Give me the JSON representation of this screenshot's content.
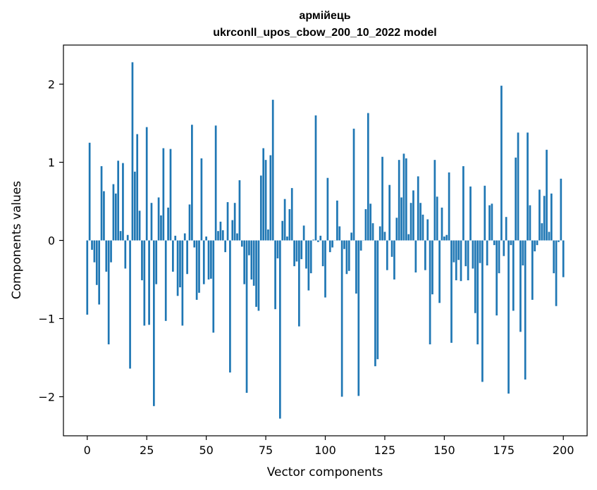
{
  "chart_data": {
    "type": "bar",
    "title": "армійець",
    "subtitle": "ukrconll_upos_cbow_200_10_2022 model",
    "xlabel": "Vector components",
    "ylabel": "Components values",
    "xlim": [
      -10,
      210
    ],
    "ylim": [
      -2.5,
      2.5
    ],
    "xticks": [
      0,
      25,
      50,
      75,
      100,
      125,
      150,
      175,
      200
    ],
    "yticks": [
      -2,
      -1,
      0,
      1,
      2
    ],
    "ytick_labels": [
      "−2",
      "−1",
      "0",
      "1",
      "2"
    ],
    "grid": false,
    "bar_color": "#1f77b4",
    "values": [
      -0.95,
      1.25,
      -0.12,
      -0.28,
      -0.57,
      -0.82,
      0.95,
      0.63,
      -0.4,
      -1.33,
      -0.28,
      0.72,
      0.6,
      1.02,
      0.12,
      0.99,
      -0.36,
      0.07,
      -1.64,
      2.28,
      0.88,
      1.36,
      0.38,
      -0.51,
      -1.09,
      1.45,
      -1.08,
      0.48,
      -2.12,
      -0.56,
      0.55,
      0.32,
      1.18,
      -1.03,
      0.42,
      1.17,
      -0.4,
      0.06,
      -0.71,
      -0.6,
      -1.09,
      0.09,
      -0.43,
      0.46,
      1.48,
      -0.09,
      -0.76,
      -0.67,
      1.05,
      -0.56,
      0.05,
      -0.5,
      -0.49,
      -1.18,
      1.47,
      0.12,
      0.24,
      0.13,
      -0.15,
      0.49,
      -1.69,
      0.26,
      0.48,
      0.09,
      0.77,
      -0.08,
      -0.56,
      -1.95,
      -0.19,
      -0.5,
      -0.58,
      -0.85,
      -0.9,
      0.83,
      1.18,
      1.03,
      0.14,
      1.09,
      1.8,
      -0.88,
      -0.23,
      -2.28,
      0.25,
      0.53,
      0.05,
      0.4,
      0.67,
      -0.33,
      -0.27,
      -1.1,
      -0.24,
      0.19,
      -0.36,
      -0.64,
      -0.42,
      0.01,
      1.6,
      -0.02,
      0.06,
      -0.33,
      -0.73,
      0.8,
      -0.15,
      -0.09,
      0.0,
      0.51,
      0.18,
      -2.0,
      -0.11,
      -0.43,
      -0.39,
      0.1,
      1.43,
      -0.68,
      -1.99,
      -0.13,
      0.0,
      0.4,
      1.63,
      0.47,
      0.22,
      -1.61,
      -1.52,
      0.18,
      1.07,
      0.11,
      -0.38,
      0.71,
      -0.21,
      -0.5,
      0.29,
      1.03,
      0.55,
      1.11,
      1.05,
      0.08,
      0.48,
      0.64,
      -0.41,
      0.82,
      0.48,
      0.33,
      -0.38,
      0.27,
      -1.33,
      -0.69,
      1.03,
      0.56,
      -0.8,
      0.42,
      0.05,
      0.07,
      0.87,
      -1.31,
      -0.28,
      -0.51,
      -0.25,
      -0.52,
      0.95,
      -0.33,
      -0.51,
      0.69,
      -0.36,
      -0.93,
      -1.33,
      -0.29,
      -1.81,
      0.7,
      -0.32,
      0.45,
      0.47,
      -0.06,
      -0.96,
      -0.42,
      1.98,
      -0.2,
      0.3,
      -1.96,
      -0.06,
      -0.9,
      1.06,
      1.38,
      -1.17,
      -0.32,
      -1.78,
      1.38,
      0.45,
      -0.76,
      -0.14,
      -0.06,
      0.65,
      0.22,
      0.57,
      1.16,
      0.11,
      0.6,
      -0.42,
      -0.84,
      -0.02,
      0.79,
      -0.47
    ]
  }
}
